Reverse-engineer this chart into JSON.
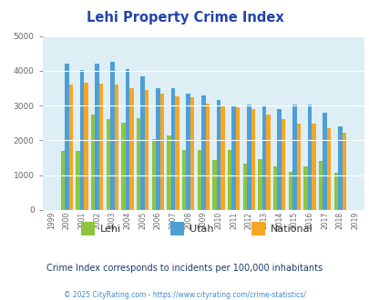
{
  "title": "Lehi Property Crime Index",
  "years": [
    1999,
    2000,
    2001,
    2002,
    2003,
    2004,
    2005,
    2006,
    2007,
    2008,
    2009,
    2010,
    2011,
    2012,
    2013,
    2014,
    2015,
    2016,
    2017,
    2018,
    2019
  ],
  "lehi": [
    null,
    1700,
    1700,
    2750,
    2600,
    2520,
    2650,
    2050,
    2150,
    1720,
    1720,
    1440,
    1720,
    1320,
    1460,
    1260,
    1100,
    1250,
    1420,
    1060,
    null
  ],
  "utah": [
    null,
    4200,
    4020,
    4200,
    4250,
    4050,
    3850,
    3500,
    3500,
    3350,
    3300,
    3170,
    2970,
    3020,
    2980,
    2900,
    3020,
    3020,
    2800,
    2400,
    null
  ],
  "national": [
    null,
    3600,
    3660,
    3620,
    3600,
    3500,
    3450,
    3350,
    3270,
    3250,
    3050,
    2970,
    2960,
    2910,
    2750,
    2600,
    2490,
    2470,
    2350,
    2210,
    null
  ],
  "lehi_color": "#8dc63f",
  "utah_color": "#4d9fd6",
  "national_color": "#f5a623",
  "plot_bg": "#ddeef5",
  "title_color": "#2244aa",
  "ylabel_max": 5000,
  "subtitle": "Crime Index corresponds to incidents per 100,000 inhabitants",
  "footer": "© 2025 CityRating.com - https://www.cityrating.com/crime-statistics/",
  "subtitle_color": "#1a3a6e",
  "footer_color": "#4488cc"
}
